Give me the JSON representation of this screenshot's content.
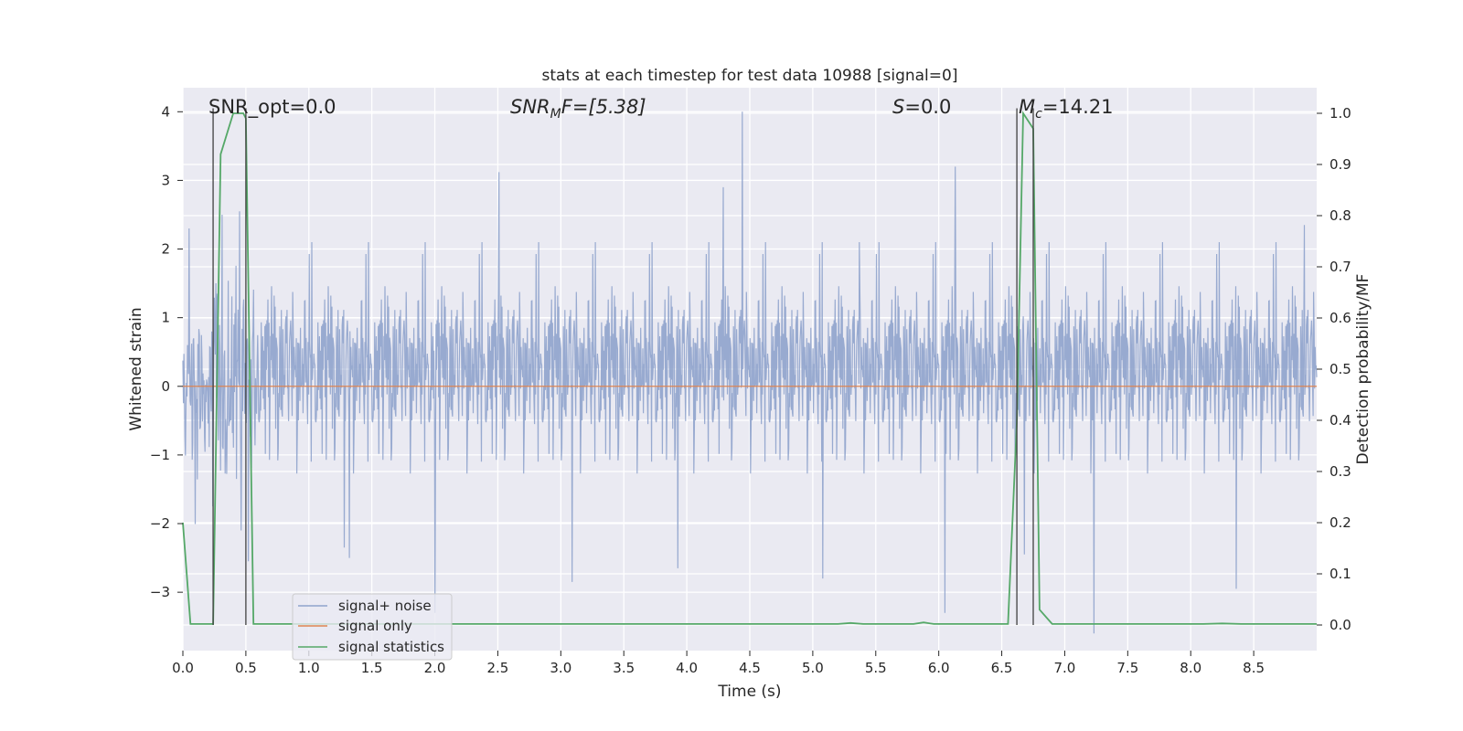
{
  "chart_data": {
    "type": "line",
    "title": "stats at each timestep for test data 10988 [signal=0]",
    "xlabel": "Time (s)",
    "ylabel": "Whitened strain",
    "y2label": "Detection probability/MF",
    "xlim": [
      0.0,
      9.0
    ],
    "ylim": [
      -3.85,
      4.35
    ],
    "y2lim": [
      -0.05,
      1.05
    ],
    "grid": true,
    "legend_placement": "lower-left",
    "x_ticks": [
      0.0,
      0.5,
      1.0,
      1.5,
      2.0,
      2.5,
      3.0,
      3.5,
      4.0,
      4.5,
      5.0,
      5.5,
      6.0,
      6.5,
      7.0,
      7.5,
      8.0,
      8.5
    ],
    "x_tick_labels": [
      "0.0",
      "0.5",
      "1.0",
      "1.5",
      "2.0",
      "2.5",
      "3.0",
      "3.5",
      "4.0",
      "4.5",
      "5.0",
      "5.5",
      "6.0",
      "6.5",
      "7.0",
      "7.5",
      "8.0",
      "8.5"
    ],
    "y_ticks": [
      4,
      3,
      2,
      1,
      0,
      -1,
      -2,
      -3
    ],
    "y_tick_labels": [
      "4",
      "3",
      "2",
      "1",
      "0",
      "−1",
      "−2",
      "−3"
    ],
    "y2_ticks": [
      1.0,
      0.9,
      0.8,
      0.7,
      0.6,
      0.5,
      0.4,
      0.3,
      0.2,
      0.1,
      0.0
    ],
    "y2_tick_labels": [
      "1.0",
      "0.9",
      "0.8",
      "0.7",
      "0.6",
      "0.5",
      "0.4",
      "0.3",
      "0.2",
      "0.1",
      "0.0"
    ],
    "annotations": {
      "snr_opt": "SNR_opt=0.0",
      "snr_mf_main": "SNR",
      "snr_mf_sub": "M",
      "snr_mf_rest": "F=[5.38]",
      "s_main": "S",
      "s_rest": "=0.0",
      "mc_main": "M",
      "mc_sub": "c",
      "mc_rest": "=14.21"
    },
    "markers": [
      0.24,
      0.5,
      6.62,
      6.75
    ],
    "marker_ymax": 4.05,
    "series": [
      {
        "name": "signal+ noise",
        "color": "#8fa3cc",
        "kind": "noise",
        "length": 2200,
        "sigma": 0.72,
        "spikes": [
          [
            0.31,
            2.5
          ],
          [
            0.45,
            2.55
          ],
          [
            0.05,
            2.3
          ],
          [
            2.51,
            3.12
          ],
          [
            4.44,
            4.0
          ],
          [
            6.13,
            3.2
          ],
          [
            8.9,
            2.35
          ],
          [
            4.29,
            2.9
          ],
          [
            5.37,
            2.1
          ],
          [
            2.0,
            -3.3
          ],
          [
            7.23,
            -3.6
          ],
          [
            8.36,
            -2.95
          ],
          [
            5.08,
            -2.8
          ],
          [
            3.09,
            -2.85
          ],
          [
            1.28,
            -2.35
          ],
          [
            6.05,
            -3.3
          ],
          [
            1.32,
            -2.5
          ],
          [
            3.93,
            -2.65
          ],
          [
            6.68,
            -2.45
          ],
          [
            0.52,
            -2.55
          ]
        ]
      },
      {
        "name": "signal only",
        "color": "#dd8452",
        "kind": "flat",
        "value": 0
      },
      {
        "name": "signal statistics",
        "color": "#55a868",
        "kind": "prob",
        "x": [
          0.0,
          0.06,
          0.24,
          0.3,
          0.4,
          0.48,
          0.5,
          0.56,
          5.2,
          5.3,
          5.4,
          5.8,
          5.88,
          5.96,
          6.55,
          6.62,
          6.67,
          6.75,
          6.8,
          6.9,
          8.1,
          8.25,
          8.4,
          9.0
        ],
        "y": [
          0.2,
          0.002,
          0.002,
          0.92,
          1.0,
          1.0,
          0.99,
          0.002,
          0.002,
          0.004,
          0.002,
          0.002,
          0.005,
          0.002,
          0.002,
          0.4,
          1.0,
          0.97,
          0.03,
          0.002,
          0.002,
          0.003,
          0.002,
          0.002
        ]
      }
    ]
  }
}
